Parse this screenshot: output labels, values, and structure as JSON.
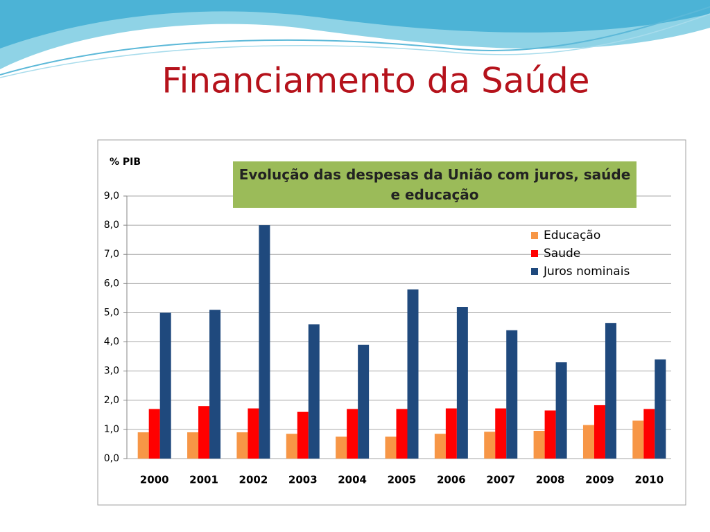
{
  "slide_title": "Financiamento da Saúde",
  "chart_data": {
    "type": "bar",
    "title": "Evolução das despesas da União com  juros, saúde e educação",
    "y_label": "% PIB",
    "categories": [
      "2000",
      "2001",
      "2002",
      "2003",
      "2004",
      "2005",
      "2006",
      "2007",
      "2008",
      "2009",
      "2010"
    ],
    "series": [
      {
        "name": "Educação",
        "color": "#f79646",
        "values": [
          0.9,
          0.9,
          0.9,
          0.85,
          0.75,
          0.75,
          0.85,
          0.92,
          0.95,
          1.15,
          1.3
        ]
      },
      {
        "name": "Saude",
        "color": "#ff0000",
        "values": [
          1.7,
          1.8,
          1.72,
          1.6,
          1.7,
          1.7,
          1.72,
          1.72,
          1.65,
          1.83,
          1.7
        ]
      },
      {
        "name": "Juros nominais",
        "color": "#1f497d",
        "values": [
          5.0,
          5.1,
          8.0,
          4.6,
          3.9,
          5.8,
          5.2,
          4.4,
          3.3,
          4.65,
          3.4
        ]
      }
    ],
    "ylim": [
      0,
      9
    ],
    "yticks": [
      {
        "value": 0,
        "label": "0,0"
      },
      {
        "value": 1,
        "label": "1,0"
      },
      {
        "value": 2,
        "label": "2,0"
      },
      {
        "value": 3,
        "label": "3,0"
      },
      {
        "value": 4,
        "label": "4,0"
      },
      {
        "value": 5,
        "label": "5,0"
      },
      {
        "value": 6,
        "label": "6,0"
      },
      {
        "value": 7,
        "label": "7,0"
      },
      {
        "value": 8,
        "label": "8,0"
      },
      {
        "value": 9,
        "label": "9,0"
      }
    ],
    "grid": true,
    "legend": "upper-right"
  }
}
